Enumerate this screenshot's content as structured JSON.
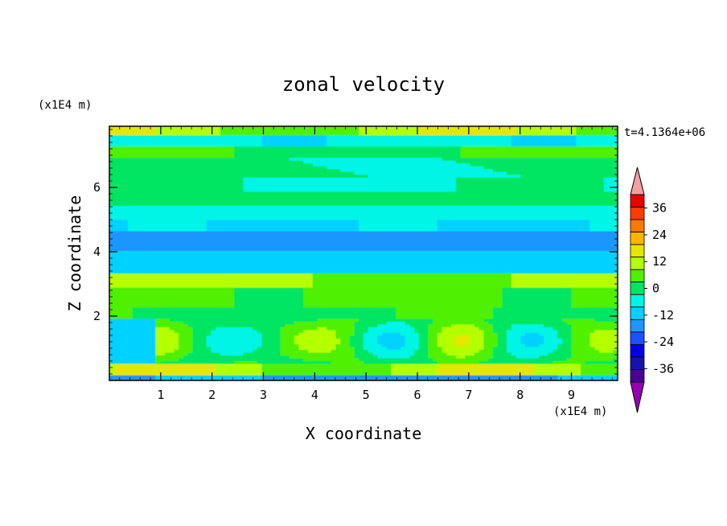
{
  "chart_data": {
    "type": "heatmap",
    "title": "zonal velocity",
    "xlabel": "X coordinate",
    "ylabel": "Z coordinate",
    "x_unit": "(x1E4 m)",
    "y_unit": "(x1E4 m)",
    "time_label": "t=4.1364e+06",
    "xlim": [
      0,
      9.9
    ],
    "ylim": [
      0,
      7.9
    ],
    "x_ticks": [
      1,
      2,
      3,
      4,
      5,
      6,
      7,
      8,
      9
    ],
    "y_ticks": [
      2,
      4,
      6
    ],
    "colorbar": {
      "levels": [
        -42,
        -36,
        -30,
        -24,
        -18,
        -12,
        -6,
        0,
        6,
        12,
        18,
        24,
        30,
        36,
        42
      ],
      "labels": [
        "36",
        "24",
        "12",
        "0",
        "-12",
        "-24",
        "-36"
      ],
      "label_values": [
        36,
        24,
        12,
        0,
        -12,
        -24,
        -36
      ],
      "colors": [
        "#4b0096",
        "#1414aa",
        "#0000e6",
        "#1e50ff",
        "#1e96ff",
        "#00d2ff",
        "#00f5e6",
        "#00e664",
        "#50f000",
        "#b4ff00",
        "#e6e600",
        "#ffb400",
        "#ff7800",
        "#ff3c00",
        "#e60000"
      ],
      "under_color": "#9600b4",
      "over_color": "#f0a0a0"
    }
  }
}
